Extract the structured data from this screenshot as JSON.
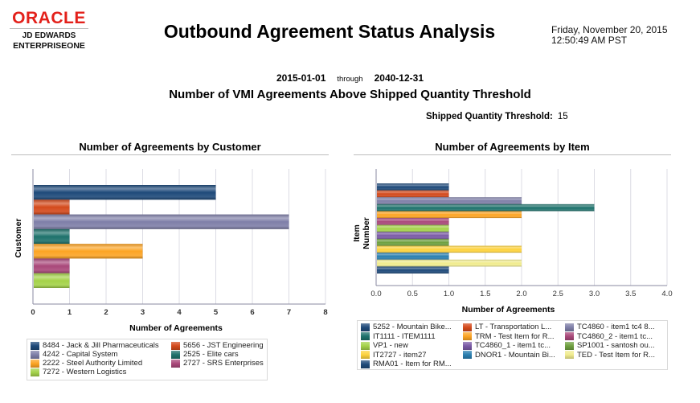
{
  "header": {
    "logo_brand": "ORACLE",
    "logo_line1": "JD EDWARDS",
    "logo_line2": "ENTERPRISEONE",
    "title": "Outbound Agreement Status Analysis",
    "date_line1": "Friday, November 20, 2015",
    "date_line2": "12:50:49 AM PST"
  },
  "filters": {
    "from_date": "2015-01-01",
    "through_label": "through",
    "to_date": "2040-12-31",
    "subtitle": "Number of VMI Agreements Above Shipped Quantity Threshold",
    "threshold_label": "Shipped Quantity Threshold:",
    "threshold_value": "15"
  },
  "chart_data": [
    {
      "type": "bar",
      "orientation": "horizontal",
      "title": "Number of Agreements by Customer",
      "xlabel": "Number of Agreements",
      "ylabel": "Customer",
      "xlim": [
        0,
        8
      ],
      "xticks": [
        "0",
        "1",
        "2",
        "3",
        "4",
        "5",
        "6",
        "7",
        "8"
      ],
      "grid": true,
      "legend_position": "bottom",
      "series": [
        {
          "name": "8484 - Jack & Jill Pharmaceuticals",
          "value": 5,
          "color": "#1f4a7a"
        },
        {
          "name": "5656 - JST Engineering",
          "value": 1,
          "color": "#d44a1c"
        },
        {
          "name": "4242 - Capital System",
          "value": 7,
          "color": "#7f7fa8"
        },
        {
          "name": "2525 - Elite cars",
          "value": 1,
          "color": "#1e726c"
        },
        {
          "name": "2222 - Steel Authority Limited",
          "value": 3,
          "color": "#fca424"
        },
        {
          "name": "2727 - SRS Enterprises",
          "value": 1,
          "color": "#a9487a"
        },
        {
          "name": "7272 - Western Logistics",
          "value": 1,
          "color": "#a4d24a"
        }
      ]
    },
    {
      "type": "bar",
      "orientation": "horizontal",
      "title": "Number of Agreements by Item",
      "xlabel": "Number of Agreements",
      "ylabel": "Item Number",
      "xlim": [
        0,
        4
      ],
      "xticks": [
        "0.0",
        "0.5",
        "1.0",
        "1.5",
        "2.0",
        "2.5",
        "3.0",
        "3.5",
        "4.0"
      ],
      "grid": true,
      "legend_position": "bottom",
      "series": [
        {
          "name": "5252 - Mountain Bike...",
          "value": 1,
          "color": "#1f4a7a"
        },
        {
          "name": "LT - Transportation L...",
          "value": 1,
          "color": "#d44a1c"
        },
        {
          "name": "TC4860 - item1 tc4 8...",
          "value": 2,
          "color": "#7f7fa8"
        },
        {
          "name": "IT1111 - ITEM1111",
          "value": 3,
          "color": "#1e726c"
        },
        {
          "name": "TRM - Test Item for R...",
          "value": 2,
          "color": "#fca424"
        },
        {
          "name": "TC4860_2 - item1 tc...",
          "value": 1,
          "color": "#a9487a"
        },
        {
          "name": "VP1 - new",
          "value": 1,
          "color": "#a4d24a"
        },
        {
          "name": "TC4860_1 - item1 tc...",
          "value": 1,
          "color": "#7a5aa6"
        },
        {
          "name": "SP1001 - santosh ou...",
          "value": 1,
          "color": "#6fa040"
        },
        {
          "name": "IT2727 - item27",
          "value": 2,
          "color": "#fdd23e"
        },
        {
          "name": "DNOR1 - Mountain Bi...",
          "value": 1,
          "color": "#2a7fb0"
        },
        {
          "name": "TED - Test Item for R...",
          "value": 2,
          "color": "#f1ec8f"
        },
        {
          "name": "RMA01 - Item for RM...",
          "value": 1,
          "color": "#1f4a7a"
        }
      ]
    }
  ]
}
